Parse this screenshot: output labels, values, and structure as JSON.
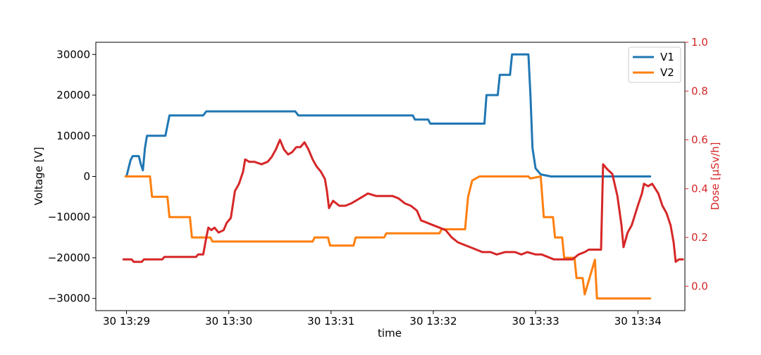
{
  "chart_data": {
    "type": "line",
    "xlabel": "time",
    "x_ticks": [
      "30 13:29",
      "30 13:30",
      "30 13:31",
      "30 13:32",
      "30 13:33",
      "30 13:34"
    ],
    "x_unit": "minutes after 13:28",
    "xlim": [
      0.7,
      6.46
    ],
    "y_left": {
      "label": "Voltage [V]",
      "lim": [
        -33000,
        33000
      ],
      "ticks": [
        30000,
        20000,
        10000,
        0,
        -10000,
        -20000,
        -30000
      ],
      "tick_labels": [
        "30000",
        "20000",
        "10000",
        "0",
        "−10000",
        "−20000",
        "−30000"
      ]
    },
    "y_right": {
      "label": "Dose [μSv/h]",
      "lim": [
        -0.1,
        1.0
      ],
      "ticks": [
        0.0,
        0.2,
        0.4,
        0.6,
        0.8,
        1.0
      ],
      "tick_labels": [
        "0.0",
        "0.2",
        "0.4",
        "0.6",
        "0.8",
        "1.0"
      ],
      "color": "#d62728"
    },
    "legend": {
      "position": "top-right"
    },
    "series": [
      {
        "name": "V1",
        "axis": "left",
        "color": "#1f77b4",
        "points": [
          [
            1.0,
            0
          ],
          [
            1.04,
            4000
          ],
          [
            1.06,
            5000
          ],
          [
            1.12,
            5000
          ],
          [
            1.14,
            3000
          ],
          [
            1.16,
            1500
          ],
          [
            1.18,
            7000
          ],
          [
            1.2,
            10000
          ],
          [
            1.38,
            10000
          ],
          [
            1.42,
            15000
          ],
          [
            1.75,
            15000
          ],
          [
            1.78,
            16000
          ],
          [
            2.65,
            16000
          ],
          [
            2.68,
            15000
          ],
          [
            3.8,
            15000
          ],
          [
            3.82,
            14000
          ],
          [
            3.95,
            14000
          ],
          [
            3.97,
            13000
          ],
          [
            4.5,
            13000
          ],
          [
            4.52,
            20000
          ],
          [
            4.63,
            20000
          ],
          [
            4.65,
            25000
          ],
          [
            4.75,
            25000
          ],
          [
            4.77,
            30000
          ],
          [
            4.93,
            30000
          ],
          [
            4.95,
            20000
          ],
          [
            4.97,
            7000
          ],
          [
            5.0,
            2000
          ],
          [
            5.05,
            500
          ],
          [
            5.15,
            0
          ],
          [
            6.12,
            0
          ]
        ]
      },
      {
        "name": "V2",
        "axis": "left",
        "color": "#ff7f0e",
        "points": [
          [
            0.99,
            0
          ],
          [
            1.23,
            0
          ],
          [
            1.25,
            -5000
          ],
          [
            1.4,
            -5000
          ],
          [
            1.42,
            -10000
          ],
          [
            1.62,
            -10000
          ],
          [
            1.64,
            -15000
          ],
          [
            1.82,
            -15000
          ],
          [
            1.84,
            -16000
          ],
          [
            2.82,
            -16000
          ],
          [
            2.84,
            -15000
          ],
          [
            2.97,
            -15000
          ],
          [
            2.99,
            -17000
          ],
          [
            3.22,
            -17000
          ],
          [
            3.24,
            -15000
          ],
          [
            3.52,
            -15000
          ],
          [
            3.54,
            -14000
          ],
          [
            4.06,
            -14000
          ],
          [
            4.08,
            -13000
          ],
          [
            4.31,
            -13000
          ],
          [
            4.34,
            -5000
          ],
          [
            4.38,
            -1000
          ],
          [
            4.45,
            0
          ],
          [
            4.93,
            0
          ],
          [
            4.95,
            -500
          ],
          [
            5.05,
            0
          ],
          [
            5.08,
            -10000
          ],
          [
            5.17,
            -10000
          ],
          [
            5.19,
            -15000
          ],
          [
            5.26,
            -15000
          ],
          [
            5.28,
            -20000
          ],
          [
            5.38,
            -20000
          ],
          [
            5.4,
            -25000
          ],
          [
            5.46,
            -25000
          ],
          [
            5.48,
            -29000
          ],
          [
            5.58,
            -20500
          ],
          [
            5.6,
            -30000
          ],
          [
            6.12,
            -30000
          ]
        ]
      },
      {
        "name": "",
        "axis": "right",
        "color": "#d62728",
        "points": [
          [
            0.97,
            0.11
          ],
          [
            1.05,
            0.11
          ],
          [
            1.07,
            0.1
          ],
          [
            1.15,
            0.1
          ],
          [
            1.17,
            0.11
          ],
          [
            1.35,
            0.11
          ],
          [
            1.37,
            0.12
          ],
          [
            1.68,
            0.12
          ],
          [
            1.7,
            0.13
          ],
          [
            1.75,
            0.13
          ],
          [
            1.78,
            0.2
          ],
          [
            1.8,
            0.24
          ],
          [
            1.83,
            0.23
          ],
          [
            1.86,
            0.24
          ],
          [
            1.9,
            0.22
          ],
          [
            1.95,
            0.23
          ],
          [
            1.98,
            0.26
          ],
          [
            2.02,
            0.28
          ],
          [
            2.06,
            0.39
          ],
          [
            2.1,
            0.42
          ],
          [
            2.14,
            0.47
          ],
          [
            2.16,
            0.52
          ],
          [
            2.2,
            0.51
          ],
          [
            2.25,
            0.51
          ],
          [
            2.32,
            0.5
          ],
          [
            2.38,
            0.51
          ],
          [
            2.42,
            0.53
          ],
          [
            2.46,
            0.56
          ],
          [
            2.5,
            0.6
          ],
          [
            2.54,
            0.56
          ],
          [
            2.58,
            0.54
          ],
          [
            2.62,
            0.55
          ],
          [
            2.66,
            0.57
          ],
          [
            2.7,
            0.57
          ],
          [
            2.74,
            0.59
          ],
          [
            2.78,
            0.56
          ],
          [
            2.82,
            0.52
          ],
          [
            2.86,
            0.49
          ],
          [
            2.9,
            0.47
          ],
          [
            2.94,
            0.44
          ],
          [
            2.96,
            0.39
          ],
          [
            2.98,
            0.32
          ],
          [
            3.02,
            0.35
          ],
          [
            3.08,
            0.33
          ],
          [
            3.14,
            0.33
          ],
          [
            3.2,
            0.34
          ],
          [
            3.28,
            0.36
          ],
          [
            3.36,
            0.38
          ],
          [
            3.44,
            0.37
          ],
          [
            3.52,
            0.37
          ],
          [
            3.6,
            0.37
          ],
          [
            3.66,
            0.36
          ],
          [
            3.72,
            0.34
          ],
          [
            3.78,
            0.33
          ],
          [
            3.84,
            0.31
          ],
          [
            3.88,
            0.27
          ],
          [
            3.94,
            0.26
          ],
          [
            4.0,
            0.25
          ],
          [
            4.06,
            0.24
          ],
          [
            4.12,
            0.23
          ],
          [
            4.18,
            0.2
          ],
          [
            4.24,
            0.18
          ],
          [
            4.3,
            0.17
          ],
          [
            4.36,
            0.16
          ],
          [
            4.42,
            0.15
          ],
          [
            4.48,
            0.14
          ],
          [
            4.56,
            0.14
          ],
          [
            4.62,
            0.13
          ],
          [
            4.7,
            0.14
          ],
          [
            4.8,
            0.14
          ],
          [
            4.86,
            0.13
          ],
          [
            4.92,
            0.14
          ],
          [
            5.0,
            0.13
          ],
          [
            5.06,
            0.13
          ],
          [
            5.12,
            0.12
          ],
          [
            5.18,
            0.11
          ],
          [
            5.3,
            0.11
          ],
          [
            5.36,
            0.11
          ],
          [
            5.42,
            0.13
          ],
          [
            5.48,
            0.14
          ],
          [
            5.52,
            0.15
          ],
          [
            5.6,
            0.15
          ],
          [
            5.64,
            0.15
          ],
          [
            5.66,
            0.5
          ],
          [
            5.7,
            0.48
          ],
          [
            5.75,
            0.46
          ],
          [
            5.8,
            0.37
          ],
          [
            5.84,
            0.25
          ],
          [
            5.86,
            0.16
          ],
          [
            5.9,
            0.22
          ],
          [
            5.94,
            0.25
          ],
          [
            6.0,
            0.33
          ],
          [
            6.04,
            0.38
          ],
          [
            6.06,
            0.42
          ],
          [
            6.1,
            0.41
          ],
          [
            6.14,
            0.42
          ],
          [
            6.2,
            0.38
          ],
          [
            6.24,
            0.33
          ],
          [
            6.28,
            0.3
          ],
          [
            6.32,
            0.25
          ],
          [
            6.35,
            0.18
          ],
          [
            6.37,
            0.1
          ],
          [
            6.4,
            0.11
          ],
          [
            6.44,
            0.11
          ]
        ]
      }
    ]
  }
}
